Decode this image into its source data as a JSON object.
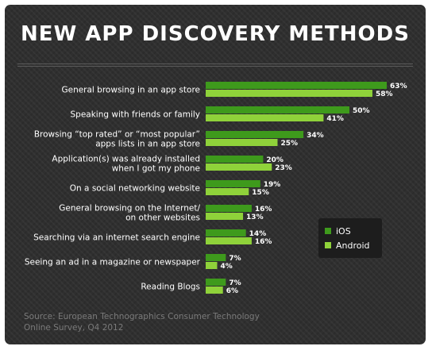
{
  "title": "NEW APP DISCOVERY METHODS",
  "source": "Source: European Technographics Consumer Technology Online Survey, Q4 2012",
  "colors": {
    "ios": "#3e9a1c",
    "android": "#8fd23a"
  },
  "chart_data": {
    "type": "bar",
    "orientation": "horizontal",
    "title": "NEW APP DISCOVERY METHODS",
    "categories": [
      [
        "General browsing in an app store"
      ],
      [
        "Speaking with friends or family"
      ],
      [
        "Browsing “top rated” or “most popular”",
        "apps lists in an app store"
      ],
      [
        "Application(s) was already installed",
        "when I got my phone"
      ],
      [
        "On a social networking website"
      ],
      [
        "General browsing on the Internet/",
        "on other websites"
      ],
      [
        "Searching via an internet search engine"
      ],
      [
        "Seeing an ad in a magazine or newspaper"
      ],
      [
        "Reading Blogs"
      ]
    ],
    "series": [
      {
        "name": "iOS",
        "values": [
          63,
          50,
          34,
          20,
          19,
          16,
          14,
          7,
          7
        ]
      },
      {
        "name": "Android",
        "values": [
          58,
          41,
          25,
          23,
          15,
          13,
          16,
          4,
          6
        ]
      }
    ],
    "value_suffix": "%",
    "legend_position": "right",
    "grid": false
  }
}
